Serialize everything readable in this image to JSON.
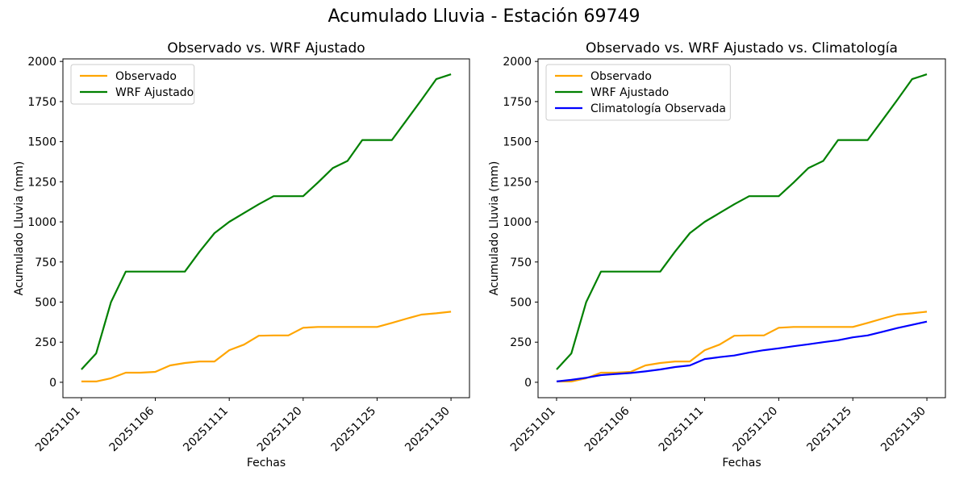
{
  "figure": {
    "suptitle": "Acumulado Lluvia - Estación 69749"
  },
  "chart_data": [
    {
      "type": "line",
      "title": "Observado vs. WRF Ajustado",
      "xlabel": "Fechas",
      "ylabel": "Acumulado Lluvia (mm)",
      "grid": false,
      "legend_position": "upper left",
      "n_points": 26,
      "xlim": [
        -1.25,
        26.25
      ],
      "ylim": [
        -96,
        2016
      ],
      "y_ticks": [
        0,
        250,
        500,
        750,
        1000,
        1250,
        1500,
        1750,
        2000
      ],
      "x_tick_positions": [
        0,
        5,
        10,
        15,
        20,
        25
      ],
      "x_tick_labels": [
        "20251101",
        "20251106",
        "20251111",
        "20251120",
        "20251125",
        "20251130"
      ],
      "series": [
        {
          "name": "Observado",
          "color": "#FFA500",
          "values": [
            5,
            5,
            25,
            60,
            60,
            65,
            105,
            120,
            130,
            130,
            200,
            235,
            290,
            292,
            292,
            340,
            345,
            345,
            345,
            345,
            345,
            370,
            397,
            422,
            430,
            440
          ]
        },
        {
          "name": "WRF Ajustado",
          "color": "#008000",
          "values": [
            80,
            180,
            500,
            690,
            690,
            690,
            690,
            690,
            815,
            930,
            1000,
            1055,
            1110,
            1160,
            1160,
            1160,
            1245,
            1335,
            1380,
            1510,
            1510,
            1510,
            1635,
            1760,
            1890,
            1920
          ]
        }
      ]
    },
    {
      "type": "line",
      "title": "Observado vs. WRF Ajustado vs. Climatología",
      "xlabel": "Fechas",
      "ylabel": "Acumulado Lluvia (mm)",
      "grid": false,
      "legend_position": "upper left",
      "n_points": 26,
      "xlim": [
        -1.25,
        26.25
      ],
      "ylim": [
        -96,
        2016
      ],
      "y_ticks": [
        0,
        250,
        500,
        750,
        1000,
        1250,
        1500,
        1750,
        2000
      ],
      "x_tick_positions": [
        0,
        5,
        10,
        15,
        20,
        25
      ],
      "x_tick_labels": [
        "20251101",
        "20251106",
        "20251111",
        "20251120",
        "20251125",
        "20251130"
      ],
      "series": [
        {
          "name": "Observado",
          "color": "#FFA500",
          "values": [
            5,
            5,
            25,
            60,
            60,
            65,
            105,
            120,
            130,
            130,
            200,
            235,
            290,
            292,
            292,
            340,
            345,
            345,
            345,
            345,
            345,
            370,
            397,
            422,
            430,
            440
          ]
        },
        {
          "name": "WRF Ajustado",
          "color": "#008000",
          "values": [
            80,
            180,
            500,
            690,
            690,
            690,
            690,
            690,
            815,
            930,
            1000,
            1055,
            1110,
            1160,
            1160,
            1160,
            1245,
            1335,
            1380,
            1510,
            1510,
            1510,
            1635,
            1760,
            1890,
            1920
          ]
        },
        {
          "name": "Climatología Observada",
          "color": "#0000FF",
          "values": [
            5,
            15,
            28,
            45,
            52,
            58,
            68,
            80,
            95,
            105,
            145,
            157,
            167,
            185,
            200,
            212,
            225,
            237,
            250,
            262,
            280,
            292,
            315,
            338,
            358,
            378
          ]
        }
      ]
    }
  ]
}
